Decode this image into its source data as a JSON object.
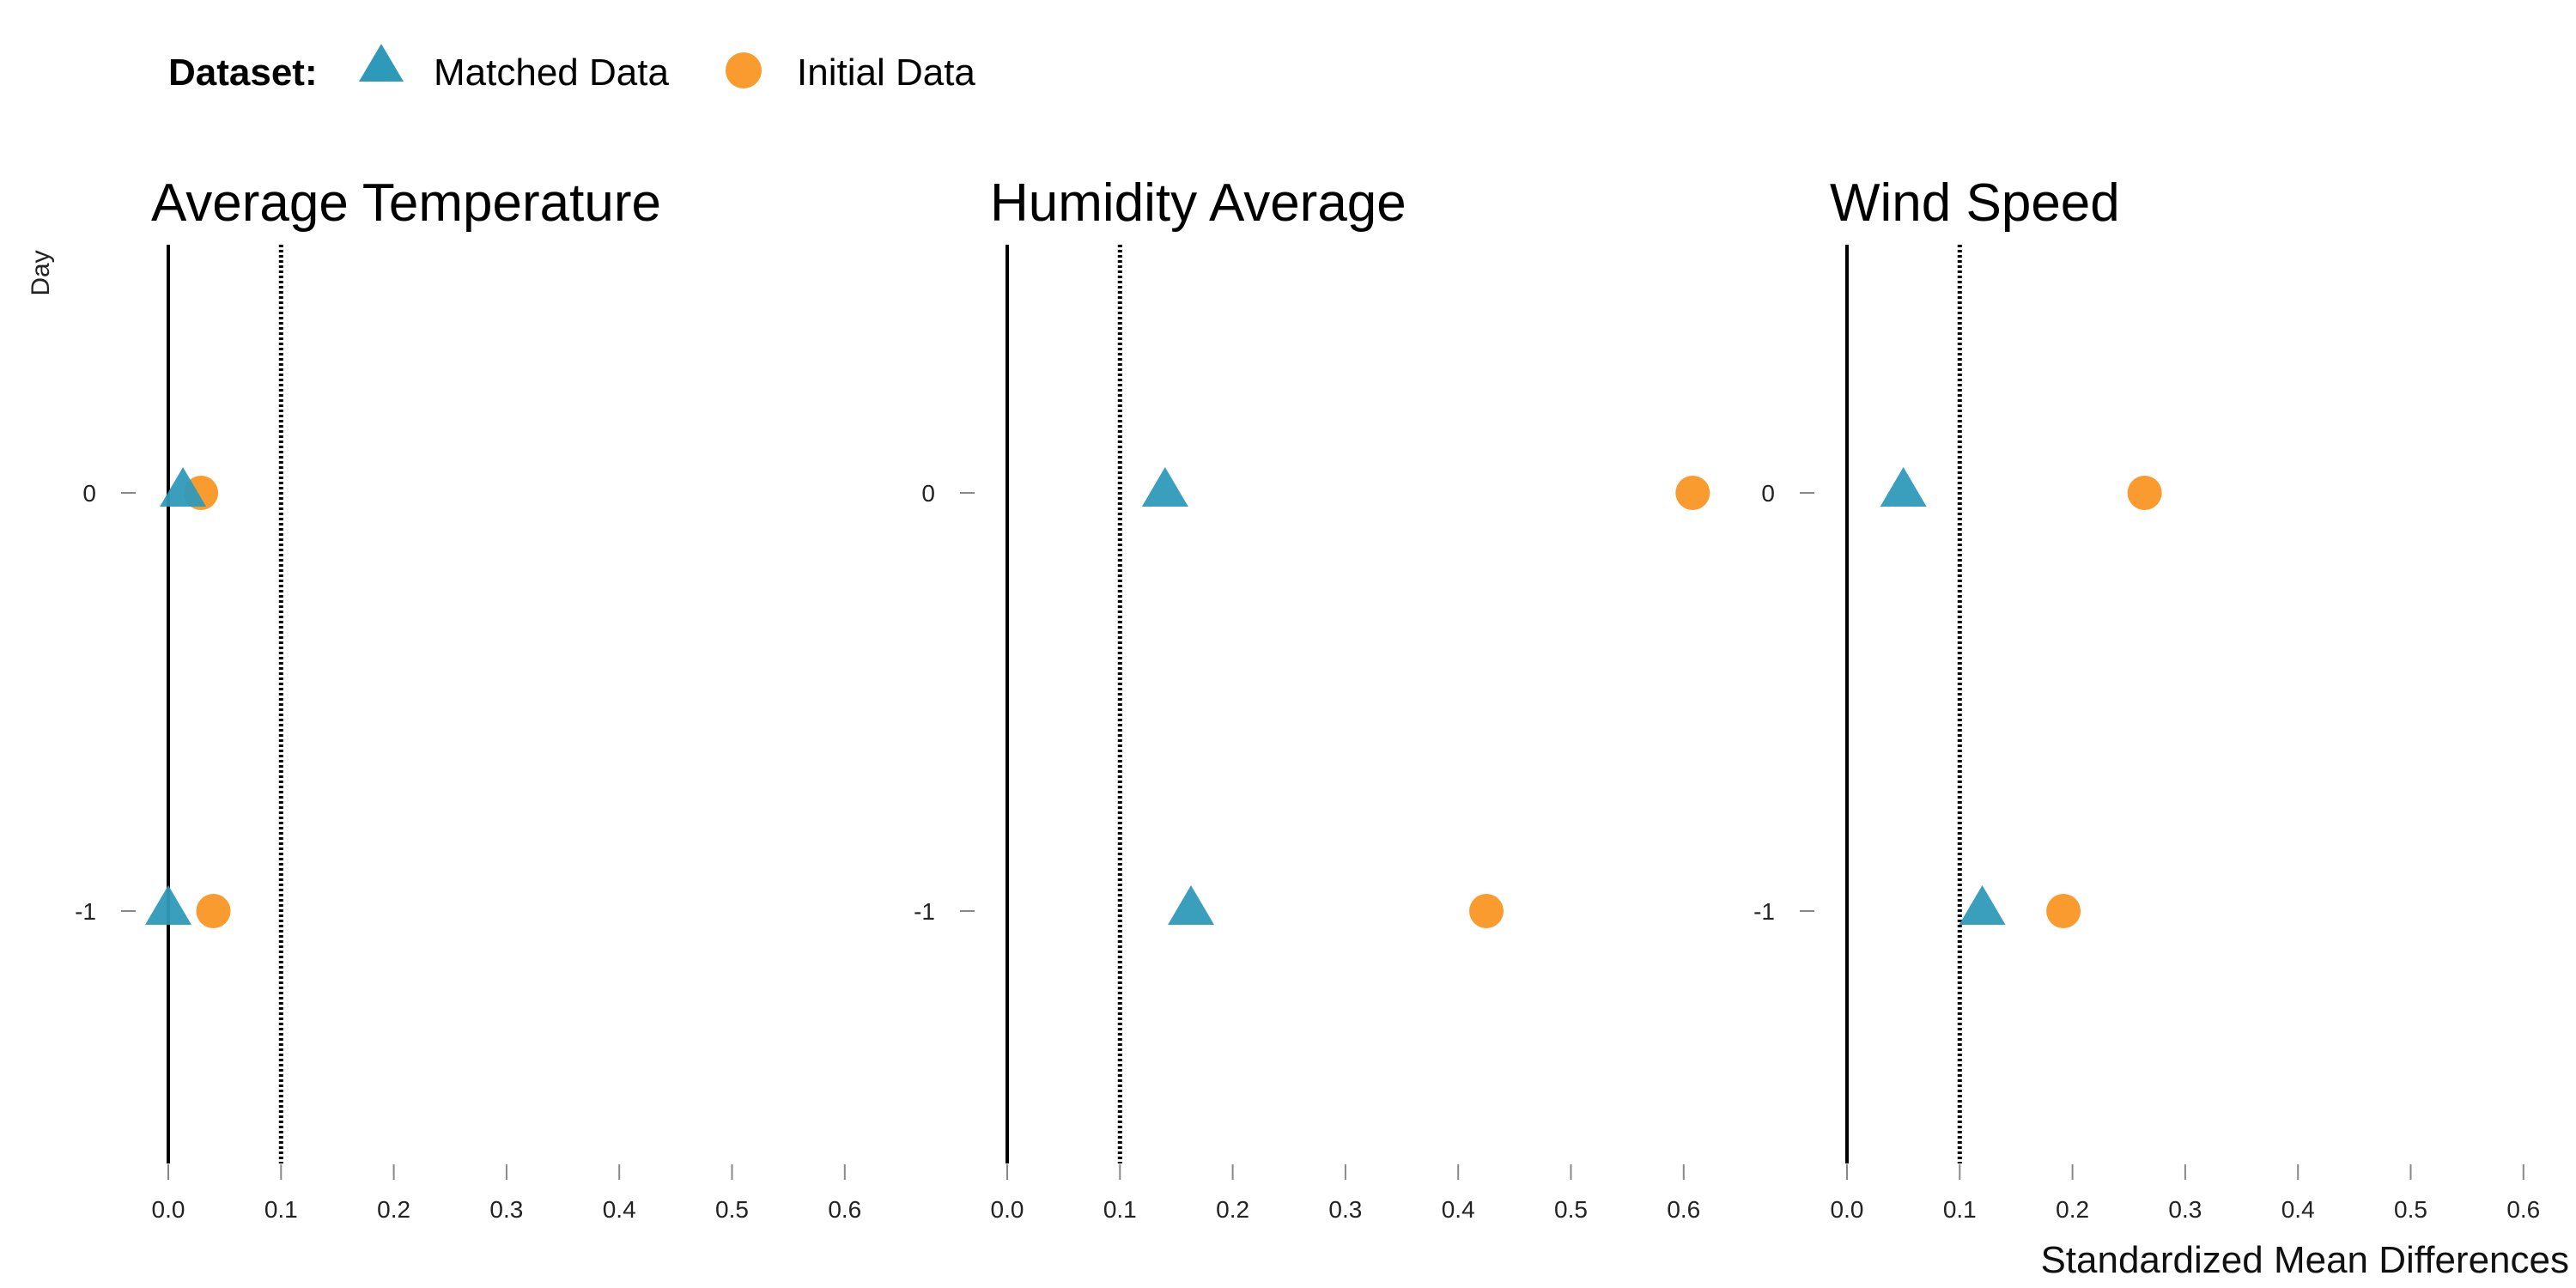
{
  "chart_data": {
    "type": "scatter",
    "legend": {
      "title": "Dataset:",
      "placement": "top-left",
      "entries": [
        {
          "label": "Matched Data",
          "shape": "triangle",
          "color": "#2E9AB8"
        },
        {
          "label": "Initial Data",
          "shape": "circle",
          "color": "#F99B2E"
        }
      ]
    },
    "ylabel": "Day",
    "xlabel": "Standardized Mean Differences",
    "categories": [
      "0",
      "-1"
    ],
    "xlim": [
      0,
      0.6
    ],
    "xticks": [
      "0.0",
      "0.1",
      "0.2",
      "0.3",
      "0.4",
      "0.5",
      "0.6"
    ],
    "reference_lines": [
      {
        "x": 0,
        "style": "solid"
      },
      {
        "x": 0.1,
        "style": "dotted"
      }
    ],
    "grid": false,
    "panels": [
      {
        "title": "Average Temperature",
        "series": [
          {
            "name": "Matched Data",
            "points": [
              {
                "day": "0",
                "x": 0.013
              },
              {
                "day": "-1",
                "x": 0.0
              }
            ]
          },
          {
            "name": "Initial Data",
            "points": [
              {
                "day": "0",
                "x": 0.029
              },
              {
                "day": "-1",
                "x": 0.04
              }
            ]
          }
        ]
      },
      {
        "title": "Humidity Average",
        "series": [
          {
            "name": "Matched Data",
            "points": [
              {
                "day": "0",
                "x": 0.14
              },
              {
                "day": "-1",
                "x": 0.163
              }
            ]
          },
          {
            "name": "Initial Data",
            "points": [
              {
                "day": "0",
                "x": 0.608
              },
              {
                "day": "-1",
                "x": 0.425
              }
            ]
          }
        ]
      },
      {
        "title": "Wind Speed",
        "series": [
          {
            "name": "Matched Data",
            "points": [
              {
                "day": "0",
                "x": 0.05
              },
              {
                "day": "-1",
                "x": 0.12
              }
            ]
          },
          {
            "name": "Initial Data",
            "points": [
              {
                "day": "0",
                "x": 0.264
              },
              {
                "day": "-1",
                "x": 0.192
              }
            ]
          }
        ]
      }
    ]
  }
}
